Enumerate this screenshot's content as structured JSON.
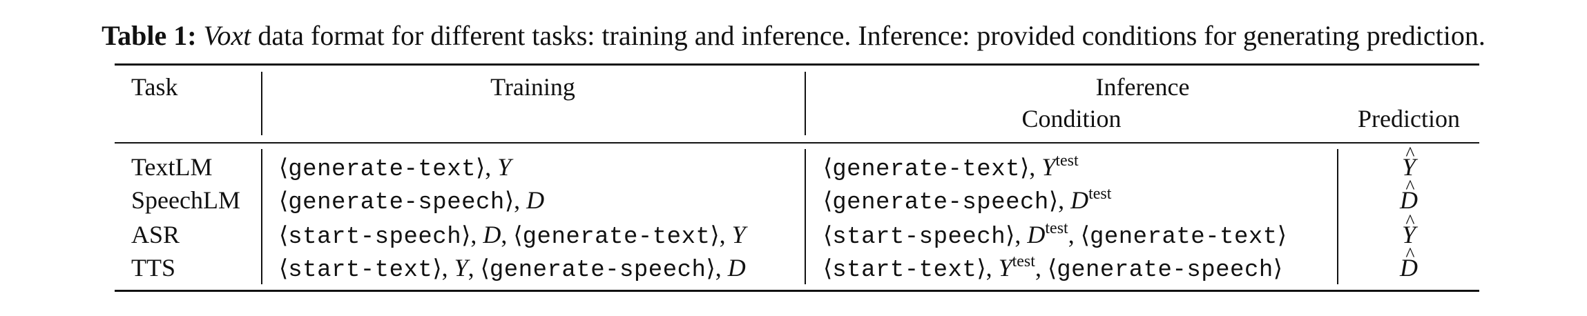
{
  "caption": {
    "label": "Table 1:",
    "name": "Voxt",
    "text": " data format for different tasks: training and inference. Inference: provided conditions for generating prediction."
  },
  "headers": {
    "task": "Task",
    "training": "Training",
    "inference": "Inference",
    "condition": "Condition",
    "prediction": "Prediction"
  },
  "tokens": {
    "open": "⟨",
    "close": "⟩",
    "comma": ", ",
    "gen_text": "generate-text",
    "gen_speech": "generate-speech",
    "start_speech": "start-speech",
    "start_text": "start-text"
  },
  "vars": {
    "Y": "Y",
    "D": "D",
    "test": "test"
  },
  "rows": [
    {
      "task": "TextLM"
    },
    {
      "task": "SpeechLM"
    },
    {
      "task": "ASR"
    },
    {
      "task": "TTS"
    }
  ]
}
